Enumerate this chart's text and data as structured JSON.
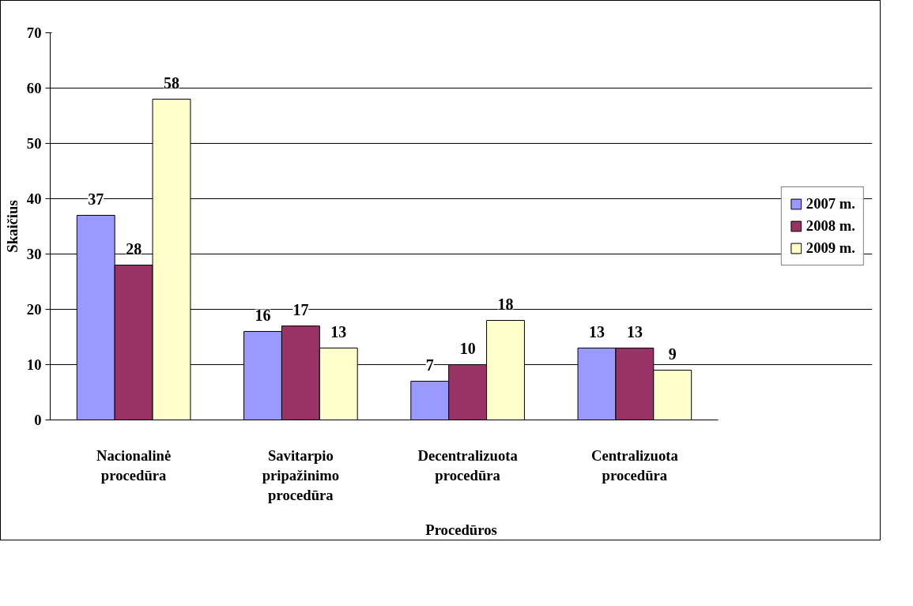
{
  "chart_data": {
    "type": "bar",
    "xlabel": "Procedūros",
    "ylabel": "Skaičius",
    "categories": [
      "Nacionalinė procedūra",
      "Savitarpio pripažinimo procedūra",
      "Decentralizuota procedūra",
      "Centralizuota procedūra"
    ],
    "series": [
      {
        "name": "2007 m.",
        "color": "#9999ff",
        "values": [
          37,
          16,
          7,
          13
        ]
      },
      {
        "name": "2008 m.",
        "color": "#993366",
        "values": [
          28,
          17,
          10,
          13
        ]
      },
      {
        "name": "2009 m.",
        "color": "#ffffcc",
        "values": [
          58,
          13,
          18,
          9
        ]
      }
    ],
    "ylim": [
      0,
      70
    ],
    "yticks": [
      0,
      10,
      20,
      30,
      40,
      50,
      60,
      70
    ],
    "grid": "y",
    "legend": "right",
    "data_labels": true
  }
}
